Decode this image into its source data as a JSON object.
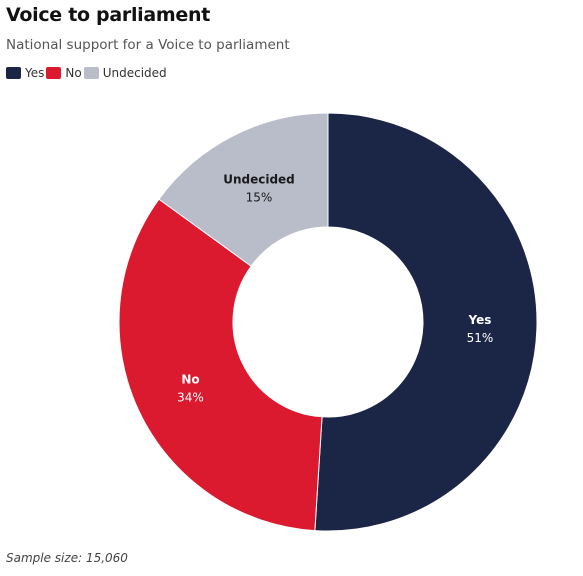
{
  "chart_data": {
    "type": "pie",
    "donut": true,
    "title": "Voice to parliament",
    "subtitle": "National support for a Voice to parliament",
    "legend_position": "top-left",
    "slices": [
      {
        "name": "Yes",
        "value": 51,
        "label": "51%",
        "color": "#1b2546",
        "label_color": "#ffffff"
      },
      {
        "name": "No",
        "value": 34,
        "label": "34%",
        "color": "#db1a30",
        "label_color": "#ffffff"
      },
      {
        "name": "Undecided",
        "value": 15,
        "label": "15%",
        "color": "#b9bcc9",
        "label_color": "#1a1a1a"
      }
    ]
  },
  "footnote": "Sample size: 15,060"
}
